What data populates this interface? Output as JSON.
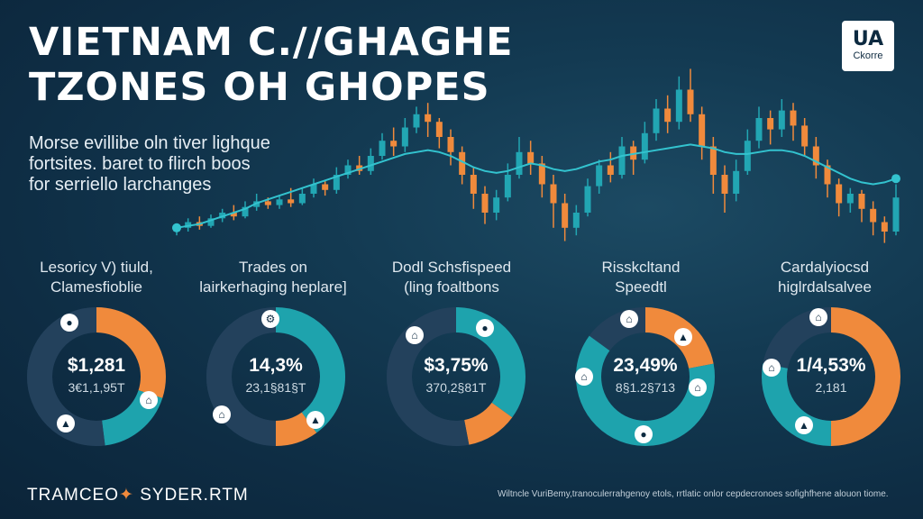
{
  "header": {
    "title_line1": "VIETNAM  C.//GHAGHE",
    "title_line2": "TZONES OH GHOPES",
    "logo_main": "UA",
    "logo_sub": "Ckorre"
  },
  "intro": {
    "line1": "Morse evillibe oln tiver lighque",
    "line2": "fortsites. baret to flirch boos",
    "line3": "for serriello larchanges"
  },
  "chart_data": [
    {
      "type": "candlestick",
      "title": "",
      "xlabel": "",
      "ylabel": "",
      "grid": false,
      "colors": {
        "up": "#22a6b3",
        "down": "#f08a3c",
        "trend": "#33c3cf"
      },
      "ylim": [
        0,
        100
      ],
      "candles": [
        {
          "o": 10,
          "c": 12,
          "h": 14,
          "l": 8
        },
        {
          "o": 12,
          "c": 15,
          "h": 17,
          "l": 10
        },
        {
          "o": 15,
          "c": 13,
          "h": 18,
          "l": 11
        },
        {
          "o": 13,
          "c": 17,
          "h": 19,
          "l": 12
        },
        {
          "o": 17,
          "c": 20,
          "h": 22,
          "l": 15
        },
        {
          "o": 20,
          "c": 18,
          "h": 24,
          "l": 16
        },
        {
          "o": 18,
          "c": 23,
          "h": 26,
          "l": 17
        },
        {
          "o": 23,
          "c": 26,
          "h": 30,
          "l": 21
        },
        {
          "o": 26,
          "c": 24,
          "h": 28,
          "l": 22
        },
        {
          "o": 24,
          "c": 27,
          "h": 29,
          "l": 22
        },
        {
          "o": 27,
          "c": 25,
          "h": 33,
          "l": 23
        },
        {
          "o": 25,
          "c": 30,
          "h": 33,
          "l": 24
        },
        {
          "o": 30,
          "c": 35,
          "h": 38,
          "l": 28
        },
        {
          "o": 35,
          "c": 32,
          "h": 37,
          "l": 29
        },
        {
          "o": 32,
          "c": 40,
          "h": 44,
          "l": 30
        },
        {
          "o": 40,
          "c": 45,
          "h": 48,
          "l": 38
        },
        {
          "o": 45,
          "c": 42,
          "h": 50,
          "l": 40
        },
        {
          "o": 42,
          "c": 50,
          "h": 54,
          "l": 40
        },
        {
          "o": 50,
          "c": 58,
          "h": 62,
          "l": 48
        },
        {
          "o": 58,
          "c": 55,
          "h": 65,
          "l": 50
        },
        {
          "o": 55,
          "c": 65,
          "h": 70,
          "l": 52
        },
        {
          "o": 65,
          "c": 72,
          "h": 76,
          "l": 62
        },
        {
          "o": 72,
          "c": 68,
          "h": 78,
          "l": 60
        },
        {
          "o": 68,
          "c": 60,
          "h": 70,
          "l": 54
        },
        {
          "o": 60,
          "c": 52,
          "h": 64,
          "l": 45
        },
        {
          "o": 52,
          "c": 40,
          "h": 55,
          "l": 35
        },
        {
          "o": 40,
          "c": 30,
          "h": 44,
          "l": 22
        },
        {
          "o": 30,
          "c": 20,
          "h": 34,
          "l": 14
        },
        {
          "o": 20,
          "c": 28,
          "h": 32,
          "l": 16
        },
        {
          "o": 28,
          "c": 40,
          "h": 46,
          "l": 26
        },
        {
          "o": 40,
          "c": 52,
          "h": 60,
          "l": 38
        },
        {
          "o": 52,
          "c": 46,
          "h": 58,
          "l": 40
        },
        {
          "o": 46,
          "c": 35,
          "h": 50,
          "l": 28
        },
        {
          "o": 35,
          "c": 25,
          "h": 40,
          "l": 12
        },
        {
          "o": 25,
          "c": 12,
          "h": 30,
          "l": 5
        },
        {
          "o": 12,
          "c": 20,
          "h": 24,
          "l": 8
        },
        {
          "o": 20,
          "c": 34,
          "h": 38,
          "l": 18
        },
        {
          "o": 34,
          "c": 45,
          "h": 48,
          "l": 30
        },
        {
          "o": 45,
          "c": 40,
          "h": 52,
          "l": 36
        },
        {
          "o": 40,
          "c": 55,
          "h": 60,
          "l": 38
        },
        {
          "o": 55,
          "c": 48,
          "h": 58,
          "l": 40
        },
        {
          "o": 48,
          "c": 62,
          "h": 68,
          "l": 46
        },
        {
          "o": 62,
          "c": 75,
          "h": 80,
          "l": 58
        },
        {
          "o": 75,
          "c": 68,
          "h": 82,
          "l": 62
        },
        {
          "o": 68,
          "c": 85,
          "h": 92,
          "l": 64
        },
        {
          "o": 85,
          "c": 72,
          "h": 96,
          "l": 68
        },
        {
          "o": 72,
          "c": 55,
          "h": 76,
          "l": 48
        },
        {
          "o": 55,
          "c": 40,
          "h": 60,
          "l": 30
        },
        {
          "o": 40,
          "c": 30,
          "h": 45,
          "l": 20
        },
        {
          "o": 30,
          "c": 42,
          "h": 48,
          "l": 26
        },
        {
          "o": 42,
          "c": 58,
          "h": 64,
          "l": 40
        },
        {
          "o": 58,
          "c": 70,
          "h": 76,
          "l": 54
        },
        {
          "o": 70,
          "c": 64,
          "h": 74,
          "l": 56
        },
        {
          "o": 64,
          "c": 74,
          "h": 80,
          "l": 60
        },
        {
          "o": 74,
          "c": 66,
          "h": 78,
          "l": 58
        },
        {
          "o": 66,
          "c": 55,
          "h": 70,
          "l": 50
        },
        {
          "o": 55,
          "c": 45,
          "h": 60,
          "l": 38
        },
        {
          "o": 45,
          "c": 35,
          "h": 48,
          "l": 28
        },
        {
          "o": 35,
          "c": 25,
          "h": 38,
          "l": 18
        },
        {
          "o": 25,
          "c": 30,
          "h": 33,
          "l": 20
        },
        {
          "o": 30,
          "c": 22,
          "h": 32,
          "l": 15
        },
        {
          "o": 22,
          "c": 15,
          "h": 26,
          "l": 8
        },
        {
          "o": 15,
          "c": 10,
          "h": 18,
          "l": 4
        },
        {
          "o": 10,
          "c": 28,
          "h": 35,
          "l": 8
        }
      ],
      "trend": [
        12,
        13,
        14,
        16,
        18,
        20,
        22,
        25,
        27,
        29,
        31,
        33,
        35,
        37,
        39,
        41,
        43,
        45,
        47,
        49,
        51,
        52,
        53,
        52,
        50,
        47,
        44,
        42,
        41,
        42,
        44,
        46,
        45,
        43,
        42,
        43,
        45,
        47,
        48,
        50,
        51,
        52,
        53,
        54,
        55,
        56,
        55,
        54,
        52,
        51,
        51,
        52,
        53,
        53,
        52,
        50,
        47,
        44,
        41,
        38,
        36,
        35,
        36,
        38
      ]
    },
    {
      "type": "pie",
      "title": [
        "Lesoricy V) tiuld,",
        "Clamesfioblie"
      ],
      "center_value": "$1,281",
      "center_sub": "3€1,1,95T",
      "colors": [
        "#f08a3c",
        "#1ea3ad",
        "#23415c"
      ],
      "values": [
        30,
        18,
        52
      ]
    },
    {
      "type": "pie",
      "title": [
        "Trades on",
        "lairkerhaging heplare]"
      ],
      "center_value": "14,3%",
      "center_sub": "23,1§81§T",
      "colors": [
        "#1ea3ad",
        "#f08a3c",
        "#23415c"
      ],
      "values": [
        40,
        10,
        50
      ]
    },
    {
      "type": "pie",
      "title": [
        "Dodl Schsfispeed",
        "(ling foaltbons"
      ],
      "center_value": "$3,75%",
      "center_sub": "370,2§81T",
      "colors": [
        "#1ea3ad",
        "#f08a3c",
        "#23415c"
      ],
      "values": [
        35,
        12,
        53
      ]
    },
    {
      "type": "pie",
      "title": [
        "Risskcltand",
        "Speedtl"
      ],
      "center_value": "23,49%",
      "center_sub": "8§1.2§713",
      "colors": [
        "#f08a3c",
        "#1ea3ad",
        "#23415c"
      ],
      "values": [
        22,
        63,
        15
      ]
    },
    {
      "type": "pie",
      "title": [
        "Cardalyiocsd",
        "higlrdalsalvee"
      ],
      "center_value": "1/4,53%",
      "center_sub": "2,181",
      "colors": [
        "#f08a3c",
        "#1ea3ad",
        "#23415c"
      ],
      "values": [
        50,
        28,
        22
      ]
    }
  ],
  "footer": {
    "brand_left": "TRAMCEO",
    "brand_mark": "✦",
    "brand_right": "SYDER.RTM",
    "note": "Wiltncle VuriBemy,tranoculerrahgenoy etols, rrtlatic onlor cepdecronoes sofighfhene alouon tiome."
  },
  "icons": [
    "coin-icon",
    "chart-icon",
    "bank-icon",
    "gear-icon"
  ]
}
